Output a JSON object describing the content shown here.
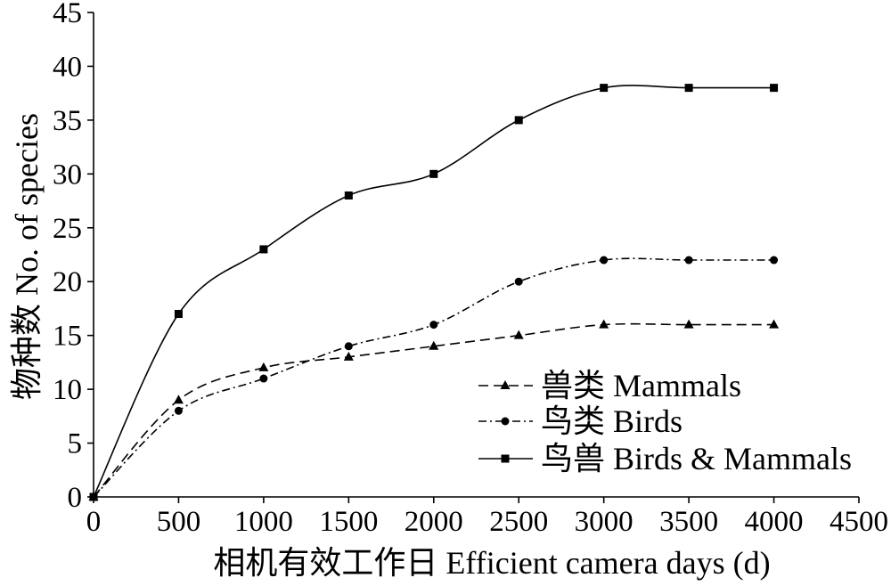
{
  "chart_data": {
    "type": "line",
    "xlabel": "相机有效工作日 Efficient camera days (d)",
    "ylabel": "物种数 No. of species",
    "xlim": [
      0,
      4500
    ],
    "ylim": [
      0,
      45
    ],
    "xticks": [
      0,
      500,
      1000,
      1500,
      2000,
      2500,
      3000,
      3500,
      4000,
      4500
    ],
    "yticks": [
      0,
      5,
      10,
      15,
      20,
      25,
      30,
      35,
      40,
      45
    ],
    "grid": false,
    "smooth": true,
    "legend_position": "lower-right",
    "x": [
      0,
      500,
      1000,
      1500,
      2000,
      2500,
      3000,
      3500,
      4000
    ],
    "series": [
      {
        "name": "兽类 Mammals",
        "line_style": "dashed",
        "marker": "triangle",
        "color": "#000000",
        "values": [
          0,
          9,
          12,
          13,
          14,
          15,
          16,
          16,
          16
        ]
      },
      {
        "name": "鸟类 Birds",
        "line_style": "dash-dot",
        "marker": "circle",
        "color": "#000000",
        "values": [
          0,
          8,
          11,
          14,
          16,
          20,
          22,
          22,
          22
        ]
      },
      {
        "name": "鸟兽 Birds & Mammals",
        "line_style": "solid",
        "marker": "square",
        "color": "#000000",
        "values": [
          0,
          17,
          23,
          28,
          30,
          35,
          38,
          38,
          38
        ]
      }
    ]
  }
}
